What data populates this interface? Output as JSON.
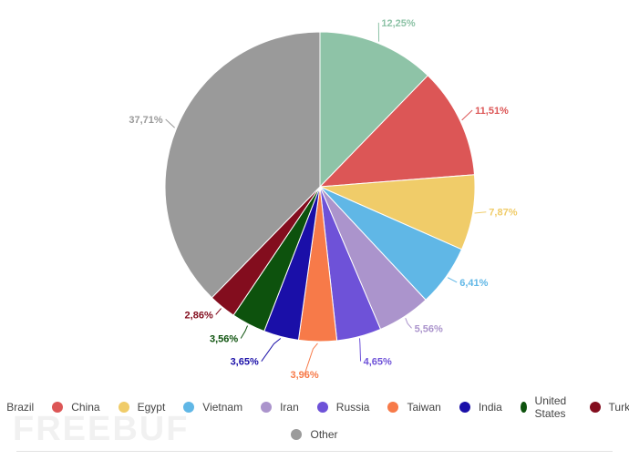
{
  "chart_data": {
    "type": "pie",
    "title": "",
    "categories": [
      "Brazil",
      "China",
      "Egypt",
      "Vietnam",
      "Iran",
      "Russia",
      "Taiwan",
      "India",
      "United States",
      "Turkey",
      "Other"
    ],
    "values": [
      12.25,
      11.51,
      7.87,
      6.41,
      5.56,
      4.65,
      3.96,
      3.65,
      3.56,
      2.86,
      37.71
    ],
    "labels": [
      "12,25%",
      "11,51%",
      "7,87%",
      "6,41%",
      "5,56%",
      "4,65%",
      "3,96%",
      "3,65%",
      "3,56%",
      "2,86%",
      "37,71%"
    ],
    "colors": [
      "#8ec3a7",
      "#dc5656",
      "#f0cc69",
      "#60b7e6",
      "#ab94cc",
      "#6e52d8",
      "#f77a49",
      "#1a0fa8",
      "#0d520d",
      "#830d1e",
      "#9a9a9a"
    ],
    "legend_position": "bottom"
  },
  "legend": {
    "rows": [
      [
        "Brazil",
        "China",
        "Egypt",
        "Vietnam",
        "Iran",
        "Russia",
        "Taiwan",
        "India",
        "United States",
        "Turkey"
      ],
      [
        "Other"
      ]
    ]
  },
  "watermark": {
    "text": "FREEBUF"
  }
}
